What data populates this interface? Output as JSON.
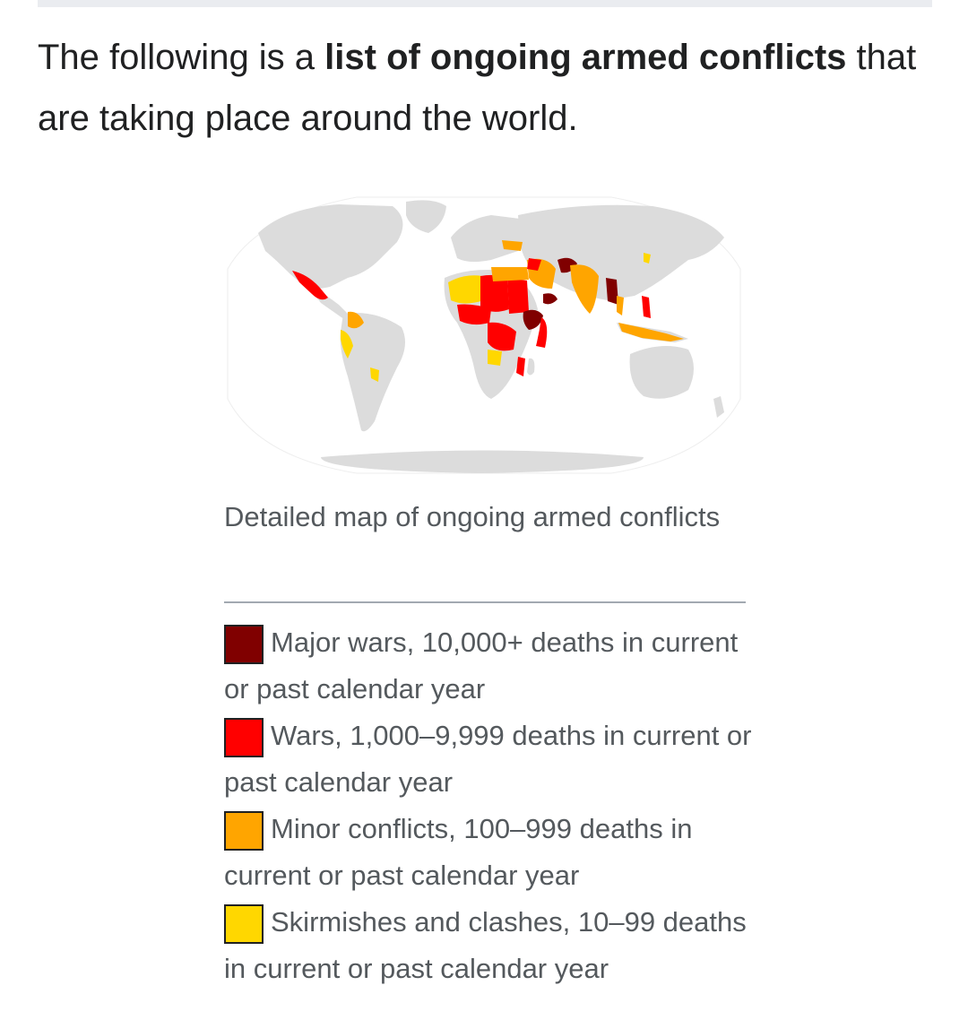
{
  "intro": {
    "before": "The following is a ",
    "bold": "list of ongoing armed conflicts",
    "after": " that are taking place around the world."
  },
  "map": {
    "land_color": "#dcdcdc",
    "ocean_color": "#ffffff"
  },
  "caption": {
    "text": "Detailed map of ongoing armed conflicts"
  },
  "legend": {
    "items": [
      {
        "color": "#800000",
        "label": "Major wars, 10,000+ deaths in current or past calendar year"
      },
      {
        "color": "#ff0000",
        "label": "Wars, 1,000–9,999 deaths in current or past calendar year"
      },
      {
        "color": "#ffa500",
        "label": "Minor conflicts, 100–999 deaths in current or past calendar year"
      },
      {
        "color": "#ffd700",
        "label": "Skirmishes and clashes, 10–99 deaths in current or past calendar year"
      }
    ]
  }
}
